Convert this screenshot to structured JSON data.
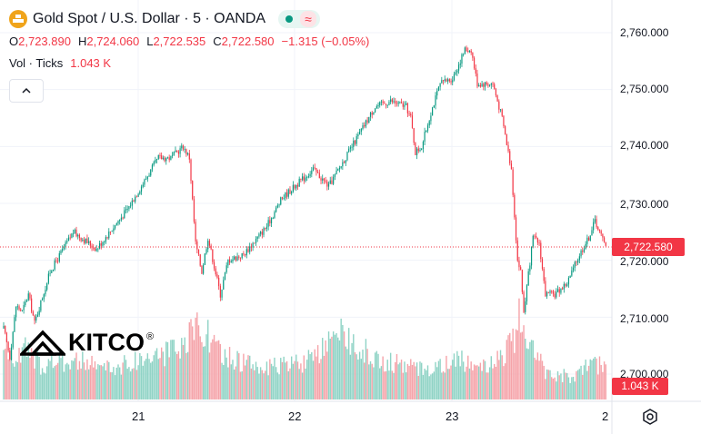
{
  "header": {
    "title": "Gold Spot / U.S. Dollar · 5 · OANDA",
    "wave_symbol": "≈",
    "ohlc": [
      {
        "label": "O",
        "value": "2,723.890"
      },
      {
        "label": "H",
        "value": "2,724.060"
      },
      {
        "label": "L",
        "value": "2,722.535"
      },
      {
        "label": "C",
        "value": "2,722.580"
      }
    ],
    "change": "−1.315 (−0.05%)",
    "volume_label": "Vol · Ticks",
    "volume_value": "1.043 K"
  },
  "logo": {
    "text": "KITCO",
    "registered": "®"
  },
  "colors": {
    "up": "#089981",
    "down": "#f23645",
    "up_vol": "#8fd3c5",
    "down_vol": "#f5a3a9",
    "grid": "#f0f3fa"
  },
  "icons": [
    "gold-bars-icon",
    "chevron-up-icon",
    "settings-icon"
  ],
  "chart_data": {
    "type": "candlestick",
    "interval": "5",
    "y_tick_labels": [
      "2,760.000",
      "2,750.000",
      "2,740.000",
      "2,730.000",
      "2,720.000",
      "2,710.000",
      "2,700.000"
    ],
    "y_ticks": [
      2760,
      2750,
      2740,
      2730,
      2720,
      2710,
      2700
    ],
    "ylim": [
      2697.5,
      2764.5
    ],
    "x_tick_labels": [
      "21",
      "22",
      "23",
      "2"
    ],
    "last_price": 2722.58,
    "last_price_label": "2,722.580",
    "last_volume_label": "1.043 K",
    "price_path": [
      [
        0,
        2708
      ],
      [
        4,
        2703
      ],
      [
        8,
        2712
      ],
      [
        12,
        2711
      ],
      [
        16,
        2714
      ],
      [
        20,
        2709
      ],
      [
        30,
        2718
      ],
      [
        45,
        2725
      ],
      [
        60,
        2722
      ],
      [
        80,
        2729
      ],
      [
        100,
        2738
      ],
      [
        108,
        2738
      ],
      [
        116,
        2740
      ],
      [
        120,
        2738
      ],
      [
        124,
        2723
      ],
      [
        128,
        2718
      ],
      [
        132,
        2724
      ],
      [
        136,
        2719
      ],
      [
        140,
        2714
      ],
      [
        145,
        2720
      ],
      [
        155,
        2721
      ],
      [
        170,
        2726
      ],
      [
        180,
        2731
      ],
      [
        200,
        2736
      ],
      [
        210,
        2733
      ],
      [
        225,
        2740
      ],
      [
        240,
        2747
      ],
      [
        250,
        2748
      ],
      [
        260,
        2747
      ],
      [
        263,
        2745
      ],
      [
        266,
        2739
      ],
      [
        270,
        2740
      ],
      [
        276,
        2746
      ],
      [
        282,
        2751
      ],
      [
        290,
        2752
      ],
      [
        298,
        2757
      ],
      [
        302,
        2757
      ],
      [
        306,
        2751
      ],
      [
        316,
        2751
      ],
      [
        322,
        2745
      ],
      [
        328,
        2736
      ],
      [
        332,
        2720
      ],
      [
        334,
        2718
      ],
      [
        336,
        2711
      ],
      [
        342,
        2724
      ],
      [
        346,
        2723
      ],
      [
        350,
        2714
      ],
      [
        356,
        2714
      ],
      [
        364,
        2716
      ],
      [
        372,
        2721
      ],
      [
        378,
        2724
      ],
      [
        382,
        2727
      ],
      [
        388,
        2723
      ]
    ],
    "volume_peaks": [
      [
        0,
        0.6
      ],
      [
        6,
        0.45
      ],
      [
        14,
        0.55
      ],
      [
        24,
        0.4
      ],
      [
        44,
        0.45
      ],
      [
        70,
        0.35
      ],
      [
        96,
        0.5
      ],
      [
        116,
        0.55
      ],
      [
        126,
        0.9
      ],
      [
        140,
        0.5
      ],
      [
        170,
        0.35
      ],
      [
        200,
        0.45
      ],
      [
        220,
        0.75
      ],
      [
        240,
        0.45
      ],
      [
        270,
        0.35
      ],
      [
        300,
        0.45
      ],
      [
        315,
        0.4
      ],
      [
        328,
        0.6
      ],
      [
        334,
        0.95
      ],
      [
        340,
        0.75
      ],
      [
        350,
        0.3
      ],
      [
        370,
        0.25
      ],
      [
        380,
        0.45
      ],
      [
        388,
        0.35
      ]
    ]
  }
}
